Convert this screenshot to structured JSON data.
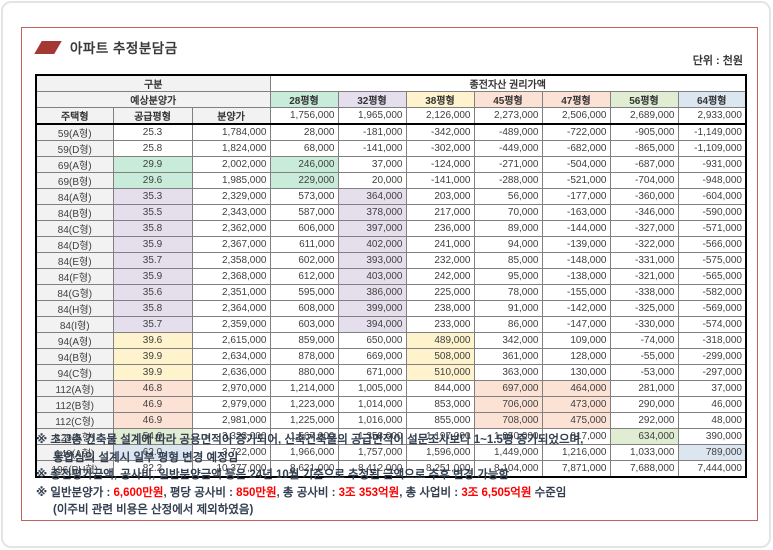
{
  "page": {
    "title": "아파트 추정분담금",
    "unit_label": "단위 : 천원",
    "colors": {
      "accent_slash": "#A43832",
      "box_border": "#C4615C",
      "red_text": "#FF0000",
      "header_gray": "#F2F2F2"
    }
  },
  "table": {
    "header": {
      "gubun": "구분",
      "expected_price": "예상분양가",
      "left_cols": [
        "주택형",
        "공급평형",
        "분양가"
      ],
      "right_title": "종전자산 권리가액",
      "pyeong_cols": [
        {
          "label": "28평형",
          "color": "#C8ECD9",
          "base": "1,756,000"
        },
        {
          "label": "32평형",
          "color": "#E5DFED",
          "base": "1,965,000"
        },
        {
          "label": "38평형",
          "color": "#FEF3CC",
          "base": "2,126,000"
        },
        {
          "label": "45평형",
          "color": "#FBE2D5",
          "base": "2,273,000"
        },
        {
          "label": "47평형",
          "color": "#FBE2D5",
          "base": "2,506,000"
        },
        {
          "label": "56평형",
          "color": "#E0EDD3",
          "base": "2,689,000"
        },
        {
          "label": "64평형",
          "color": "#DCE6F1",
          "base": "2,933,000"
        }
      ]
    },
    "rows": [
      {
        "type": "59(A형)",
        "pyeong": "25.3",
        "price": "1,784,000",
        "values": [
          "28,000",
          "-181,000",
          "-342,000",
          "-489,000",
          "-722,000",
          "-905,000",
          "-1,149,000"
        ],
        "pc": null,
        "hl": []
      },
      {
        "type": "59(D형)",
        "pyeong": "25.8",
        "price": "1,824,000",
        "values": [
          "68,000",
          "-141,000",
          "-302,000",
          "-449,000",
          "-682,000",
          "-865,000",
          "-1,109,000"
        ],
        "pc": null,
        "hl": []
      },
      {
        "type": "69(A형)",
        "pyeong": "29.9",
        "price": "2,002,000",
        "values": [
          "246,000",
          "37,000",
          "-124,000",
          "-271,000",
          "-504,000",
          "-687,000",
          "-931,000"
        ],
        "pc": 0,
        "hl": [
          0
        ]
      },
      {
        "type": "69(B형)",
        "pyeong": "29.6",
        "price": "1,985,000",
        "values": [
          "229,000",
          "20,000",
          "-141,000",
          "-288,000",
          "-521,000",
          "-704,000",
          "-948,000"
        ],
        "pc": 0,
        "hl": [
          0
        ]
      },
      {
        "type": "84(A형)",
        "pyeong": "35.3",
        "price": "2,329,000",
        "values": [
          "573,000",
          "364,000",
          "203,000",
          "56,000",
          "-177,000",
          "-360,000",
          "-604,000"
        ],
        "pc": 1,
        "hl": [
          1
        ]
      },
      {
        "type": "84(B형)",
        "pyeong": "35.5",
        "price": "2,343,000",
        "values": [
          "587,000",
          "378,000",
          "217,000",
          "70,000",
          "-163,000",
          "-346,000",
          "-590,000"
        ],
        "pc": 1,
        "hl": [
          1
        ]
      },
      {
        "type": "84(C형)",
        "pyeong": "35.8",
        "price": "2,362,000",
        "values": [
          "606,000",
          "397,000",
          "236,000",
          "89,000",
          "-144,000",
          "-327,000",
          "-571,000"
        ],
        "pc": 1,
        "hl": [
          1
        ]
      },
      {
        "type": "84(D형)",
        "pyeong": "35.9",
        "price": "2,367,000",
        "values": [
          "611,000",
          "402,000",
          "241,000",
          "94,000",
          "-139,000",
          "-322,000",
          "-566,000"
        ],
        "pc": 1,
        "hl": [
          1
        ]
      },
      {
        "type": "84(E형)",
        "pyeong": "35.7",
        "price": "2,358,000",
        "values": [
          "602,000",
          "393,000",
          "232,000",
          "85,000",
          "-148,000",
          "-331,000",
          "-575,000"
        ],
        "pc": 1,
        "hl": [
          1
        ]
      },
      {
        "type": "84(F형)",
        "pyeong": "35.9",
        "price": "2,368,000",
        "values": [
          "612,000",
          "403,000",
          "242,000",
          "95,000",
          "-138,000",
          "-321,000",
          "-565,000"
        ],
        "pc": 1,
        "hl": [
          1
        ]
      },
      {
        "type": "84(G형)",
        "pyeong": "35.6",
        "price": "2,351,000",
        "values": [
          "595,000",
          "386,000",
          "225,000",
          "78,000",
          "-155,000",
          "-338,000",
          "-582,000"
        ],
        "pc": 1,
        "hl": [
          1
        ]
      },
      {
        "type": "84(H형)",
        "pyeong": "35.8",
        "price": "2,364,000",
        "values": [
          "608,000",
          "399,000",
          "238,000",
          "91,000",
          "-142,000",
          "-325,000",
          "-569,000"
        ],
        "pc": 1,
        "hl": [
          1
        ]
      },
      {
        "type": "84(I형)",
        "pyeong": "35.7",
        "price": "2,359,000",
        "values": [
          "603,000",
          "394,000",
          "233,000",
          "86,000",
          "-147,000",
          "-330,000",
          "-574,000"
        ],
        "pc": 1,
        "hl": [
          1
        ]
      },
      {
        "type": "94(A형)",
        "pyeong": "39.6",
        "price": "2,615,000",
        "values": [
          "859,000",
          "650,000",
          "489,000",
          "342,000",
          "109,000",
          "-74,000",
          "-318,000"
        ],
        "pc": 2,
        "hl": [
          2
        ]
      },
      {
        "type": "94(B형)",
        "pyeong": "39.9",
        "price": "2,634,000",
        "values": [
          "878,000",
          "669,000",
          "508,000",
          "361,000",
          "128,000",
          "-55,000",
          "-299,000"
        ],
        "pc": 2,
        "hl": [
          2
        ]
      },
      {
        "type": "94(C형)",
        "pyeong": "39.9",
        "price": "2,636,000",
        "values": [
          "880,000",
          "671,000",
          "510,000",
          "363,000",
          "130,000",
          "-53,000",
          "-297,000"
        ],
        "pc": 2,
        "hl": [
          2
        ]
      },
      {
        "type": "112(A형)",
        "pyeong": "46.8",
        "price": "2,970,000",
        "values": [
          "1,214,000",
          "1,005,000",
          "844,000",
          "697,000",
          "464,000",
          "281,000",
          "37,000"
        ],
        "pc": 3,
        "hl": [
          3,
          4
        ]
      },
      {
        "type": "112(B형)",
        "pyeong": "46.9",
        "price": "2,979,000",
        "values": [
          "1,223,000",
          "1,014,000",
          "853,000",
          "706,000",
          "473,000",
          "290,000",
          "46,000"
        ],
        "pc": 3,
        "hl": [
          3,
          4
        ]
      },
      {
        "type": "112(C형)",
        "pyeong": "46.9",
        "price": "2,981,000",
        "values": [
          "1,225,000",
          "1,016,000",
          "855,000",
          "708,000",
          "475,000",
          "292,000",
          "48,000"
        ],
        "pc": 3,
        "hl": [
          3,
          4
        ]
      },
      {
        "type": "129(A형)",
        "pyeong": "54.0",
        "price": "3,323,000",
        "values": [
          "1,567,000",
          "1,358,000",
          "1,197,000",
          "1,050,000",
          "817,000",
          "634,000",
          "390,000"
        ],
        "pc": 5,
        "hl": [
          5
        ]
      },
      {
        "type": "149(A형)",
        "pyeong": "62.0",
        "price": "3,722,000",
        "values": [
          "1,966,000",
          "1,757,000",
          "1,596,000",
          "1,449,000",
          "1,216,000",
          "1,033,000",
          "789,000"
        ],
        "pc": 6,
        "hl": [
          6
        ]
      },
      {
        "type": "196(PH형)",
        "pyeong": "82.2",
        "price": "10,377,000",
        "values": [
          "8,621,000",
          "8,412,000",
          "8,251,000",
          "8,104,000",
          "7,871,000",
          "7,688,000",
          "7,444,000"
        ],
        "pc": null,
        "hl": []
      }
    ]
  },
  "footnotes": [
    {
      "indent": false,
      "segments": [
        {
          "text": "※ 초고층 건축물 설계에 따라 공용면적이 증가되어, 신축건축물의 공급면적이 설문조사보다 1~1.5평 증가되었으며,",
          "red": false
        }
      ]
    },
    {
      "indent": true,
      "segments": [
        {
          "text": "통합심의 설계시 일부 평형 변경 예정임",
          "red": false
        }
      ]
    },
    {
      "indent": false,
      "segments": [
        {
          "text": "※ 종전평가금액, 공사비, 일반분양금액 등은 24년 10월 기준으로 추정된 금액으로 추후 변경 가능함",
          "red": false
        }
      ]
    },
    {
      "indent": false,
      "segments": [
        {
          "text": "※ 일반분양가 : ",
          "red": false
        },
        {
          "text": "6,600만원",
          "red": true
        },
        {
          "text": ", 평당 공사비 : ",
          "red": false
        },
        {
          "text": "850만원",
          "red": true
        },
        {
          "text": ", 총 공사비 : ",
          "red": false
        },
        {
          "text": "3조 353억원",
          "red": true
        },
        {
          "text": ", 총 사업비 : ",
          "red": false
        },
        {
          "text": "3조 6,505억원",
          "red": true
        },
        {
          "text": " 수준임",
          "red": false
        }
      ]
    },
    {
      "indent": true,
      "segments": [
        {
          "text": "(이주비 관련 비용은 산정에서 제외하였음)",
          "red": false
        }
      ]
    }
  ]
}
